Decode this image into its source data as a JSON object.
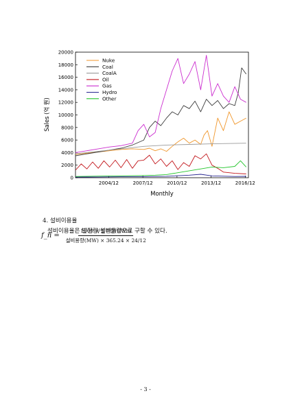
{
  "chart_data": {
    "type": "line",
    "title": "",
    "xlabel": "Monthly",
    "ylabel": "Sales (억 원)",
    "x_range": [
      2002.0,
      2017.2
    ],
    "ylim": [
      0,
      20000
    ],
    "y_ticks": [
      0,
      2000,
      4000,
      6000,
      8000,
      10000,
      12000,
      14000,
      16000,
      18000,
      20000
    ],
    "x_tick_labels": [
      "2004/12",
      "2007/12",
      "2010/12",
      "2013/12",
      "2016/12"
    ],
    "x_tick_positions": [
      2004.92,
      2007.92,
      2010.92,
      2013.92,
      2016.92
    ],
    "legend_placement": "top-left",
    "grid": false,
    "series": [
      {
        "name": "Nuke",
        "color": "#f0962a",
        "x": [
          2002.0,
          2003.0,
          2004.0,
          2005.0,
          2006.0,
          2007.0,
          2008.0,
          2008.5,
          2009.0,
          2009.5,
          2010.0,
          2010.5,
          2011.0,
          2011.5,
          2012.0,
          2012.5,
          2013.0,
          2013.3,
          2013.6,
          2014.0,
          2014.5,
          2015.0,
          2015.5,
          2016.0,
          2016.5,
          2017.0
        ],
        "y": [
          3700,
          3900,
          4100,
          4300,
          4500,
          4600,
          4500,
          4700,
          4300,
          4600,
          4200,
          5000,
          5700,
          6300,
          5500,
          6000,
          5300,
          6800,
          7500,
          5000,
          9500,
          7500,
          10500,
          8500,
          9000,
          9500
        ]
      },
      {
        "name": "Coal",
        "color": "#3b3b3b",
        "x": [
          2002.0,
          2003.0,
          2004.0,
          2005.0,
          2006.0,
          2007.0,
          2008.0,
          2008.5,
          2009.0,
          2009.5,
          2010.0,
          2010.5,
          2011.0,
          2011.5,
          2012.0,
          2012.5,
          2013.0,
          2013.5,
          2014.0,
          2014.5,
          2015.0,
          2015.5,
          2016.0,
          2016.3,
          2016.6,
          2017.0
        ],
        "y": [
          3500,
          3800,
          4100,
          4400,
          4700,
          5200,
          6000,
          8000,
          9000,
          8300,
          9500,
          10500,
          10000,
          11500,
          11000,
          12200,
          10500,
          12500,
          11500,
          12300,
          11000,
          11800,
          11500,
          13500,
          17500,
          16500
        ]
      },
      {
        "name": "CoalA",
        "color": "#9a9a9a",
        "x": [
          2002.0,
          2004.0,
          2006.0,
          2008.0,
          2010.0,
          2012.0,
          2014.0,
          2017.0
        ],
        "y": [
          3800,
          4200,
          4600,
          5000,
          5200,
          5300,
          5400,
          5500
        ]
      },
      {
        "name": "Oil",
        "color": "#c2161b",
        "x": [
          2002.0,
          2002.5,
          2003.0,
          2003.5,
          2004.0,
          2004.5,
          2005.0,
          2005.5,
          2006.0,
          2006.5,
          2007.0,
          2007.5,
          2008.0,
          2008.5,
          2009.0,
          2009.5,
          2010.0,
          2010.5,
          2011.0,
          2011.5,
          2012.0,
          2012.5,
          2013.0,
          2013.5,
          2014.0,
          2014.5,
          2015.0,
          2016.0,
          2017.0
        ],
        "y": [
          1200,
          2200,
          1400,
          2500,
          1500,
          2700,
          1700,
          2800,
          1600,
          2900,
          1500,
          2700,
          2800,
          3600,
          2200,
          3000,
          1800,
          2700,
          1300,
          2400,
          1800,
          3500,
          3000,
          3800,
          2000,
          1500,
          900,
          700,
          600
        ]
      },
      {
        "name": "Gas",
        "color": "#cb2ccf",
        "x": [
          2002.0,
          2003.0,
          2004.0,
          2005.0,
          2006.0,
          2007.0,
          2007.5,
          2008.0,
          2008.5,
          2009.0,
          2009.5,
          2010.0,
          2010.5,
          2011.0,
          2011.5,
          2012.0,
          2012.5,
          2013.0,
          2013.5,
          2014.0,
          2014.5,
          2015.0,
          2015.5,
          2016.0,
          2016.5,
          2017.0
        ],
        "y": [
          4000,
          4300,
          4600,
          4900,
          5100,
          5500,
          7500,
          8500,
          6500,
          7200,
          11000,
          14000,
          17000,
          19000,
          15000,
          16500,
          18500,
          14000,
          19500,
          13000,
          15000,
          13000,
          12000,
          14500,
          12500,
          12000
        ]
      },
      {
        "name": "Hydro",
        "color": "#25238f",
        "x": [
          2002.0,
          2004.0,
          2006.0,
          2008.0,
          2010.0,
          2012.0,
          2013.0,
          2014.0,
          2016.0,
          2017.0
        ],
        "y": [
          100,
          120,
          150,
          180,
          230,
          400,
          550,
          300,
          200,
          220
        ]
      },
      {
        "name": "Other",
        "color": "#22c52a",
        "x": [
          2002.0,
          2004.0,
          2006.0,
          2008.0,
          2009.0,
          2010.0,
          2011.0,
          2012.0,
          2013.0,
          2014.0,
          2015.0,
          2016.0,
          2016.5,
          2017.0
        ],
        "y": [
          200,
          250,
          300,
          350,
          400,
          500,
          800,
          1100,
          1400,
          1700,
          1600,
          1800,
          2700,
          1700
        ]
      }
    ]
  },
  "section": {
    "title": "4. 설비이용율",
    "body": "설비이용율은 발전량/설비용량으로 구할 수 있다.",
    "formula_lhs": "f_n =",
    "formula_num": "1000 × 발전량(GWh)",
    "formula_den": "설비용량(MW) × 365.24 × 24/12"
  },
  "page_number": "- 3 -"
}
